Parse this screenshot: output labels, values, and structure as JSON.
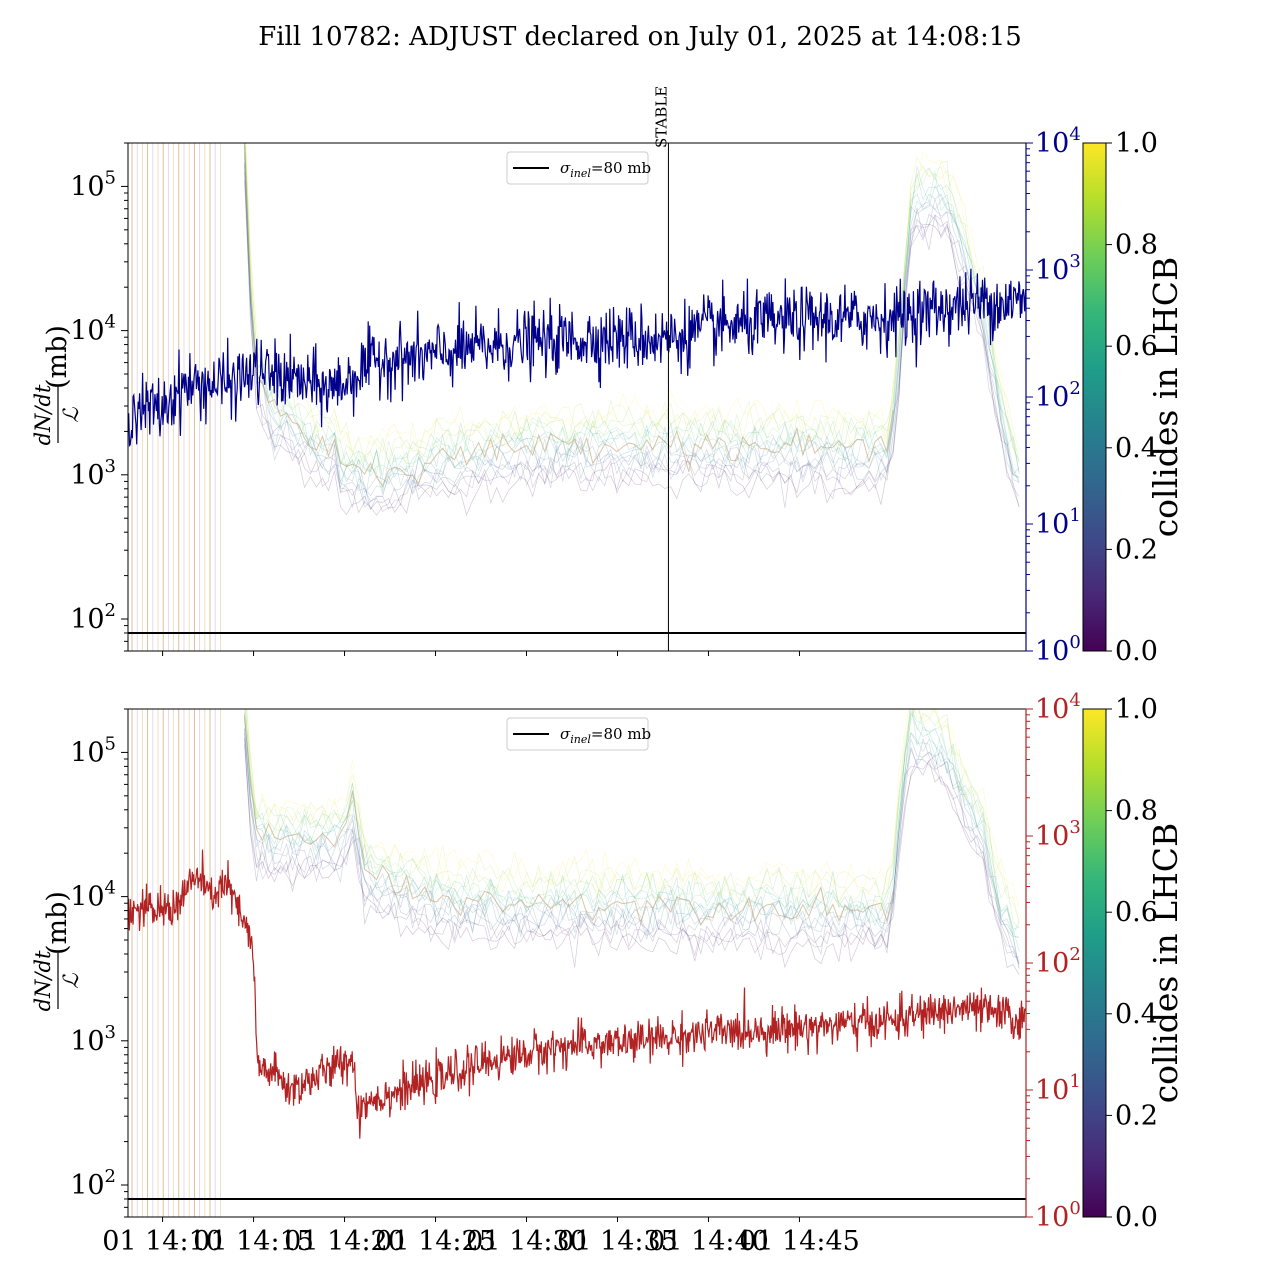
{
  "title": "Fill 10782: ADJUST declared on July 01, 2025 at 14:08:15",
  "x_ticks": [
    "01 14:10",
    "01 14:15",
    "01 14:20",
    "01 14:25",
    "01 14:30",
    "01 14:35",
    "01 14:40",
    "01 14:45"
  ],
  "colors": {
    "lumi_line": "#00008b",
    "intensity_line": "#b22222",
    "sigma_line": "#000000",
    "stable_line": "#000000",
    "colormap": [
      "#440154",
      "#482878",
      "#3e4a89",
      "#31688e",
      "#26828e",
      "#1f9e89",
      "#35b779",
      "#6ece58",
      "#b5de2b",
      "#fde725"
    ]
  },
  "chart_data": [
    {
      "type": "line",
      "panel": "top",
      "ylabel_left": "dN/dt / ℒ (mb)",
      "yscale_left": "log",
      "ylim_left": [
        60,
        200000
      ],
      "yticks_left": [
        {
          "base": "10",
          "exp": "2",
          "value": 100
        },
        {
          "base": "10",
          "exp": "3",
          "value": 1000
        },
        {
          "base": "10",
          "exp": "4",
          "value": 10000
        },
        {
          "base": "10",
          "exp": "5",
          "value": 100000
        }
      ],
      "yscale_right": "log",
      "ylim_right": [
        1,
        10000
      ],
      "yticks_right": [
        {
          "base": "10",
          "exp": "0",
          "value": 1
        },
        {
          "base": "10",
          "exp": "1",
          "value": 10
        },
        {
          "base": "10",
          "exp": "2",
          "value": 100
        },
        {
          "base": "10",
          "exp": "3",
          "value": 1000
        },
        {
          "base": "10",
          "exp": "4",
          "value": 10000
        }
      ],
      "legend": {
        "label_symbol": "σ",
        "label_sub": "inel",
        "label_rest": "=80 mb",
        "placement": "top-center"
      },
      "horizontal_line": 80,
      "vline": {
        "label": "STABLE",
        "x_minutes": 27.8
      },
      "right_series_color": "#00008b",
      "right_series_keypoints": [
        [
          0,
          80
        ],
        [
          1,
          120
        ],
        [
          4,
          130
        ],
        [
          5,
          160
        ],
        [
          7,
          140
        ],
        [
          9,
          115
        ],
        [
          10,
          130
        ],
        [
          11,
          165
        ],
        [
          12,
          200
        ],
        [
          14,
          200
        ],
        [
          17,
          240
        ],
        [
          20,
          270
        ],
        [
          24,
          290
        ],
        [
          28,
          290
        ],
        [
          30,
          350
        ],
        [
          35,
          400
        ],
        [
          40,
          420
        ],
        [
          42,
          480
        ],
        [
          44,
          530
        ],
        [
          45,
          560
        ],
        [
          47,
          560
        ]
      ],
      "right_series_noise": 0.13,
      "faint_series_keypoints": [
        [
          4.5,
          200000
        ],
        [
          5,
          6000
        ],
        [
          6,
          3000
        ],
        [
          9,
          1500
        ],
        [
          9.4,
          2000
        ],
        [
          9.6,
          1200
        ],
        [
          12,
          1000
        ],
        [
          15,
          1300
        ],
        [
          20,
          1600
        ],
        [
          25,
          1700
        ],
        [
          30,
          1600
        ],
        [
          36,
          1550
        ],
        [
          40,
          1500
        ],
        [
          40.2,
          3000
        ],
        [
          41.2,
          80000
        ],
        [
          43,
          90000
        ],
        [
          45,
          15000
        ],
        [
          46,
          3000
        ],
        [
          47,
          1000
        ]
      ],
      "colorbar": {
        "label": "collides in LHCB",
        "ticks": [
          "0.0",
          "0.2",
          "0.4",
          "0.6",
          "0.8",
          "1.0"
        ],
        "range": [
          0,
          1
        ]
      }
    },
    {
      "type": "line",
      "panel": "bottom",
      "ylabel_left": "dN/dt / ℒ (mb)",
      "yscale_left": "log",
      "ylim_left": [
        60,
        200000
      ],
      "yticks_left": [
        {
          "base": "10",
          "exp": "2",
          "value": 100
        },
        {
          "base": "10",
          "exp": "3",
          "value": 1000
        },
        {
          "base": "10",
          "exp": "4",
          "value": 10000
        },
        {
          "base": "10",
          "exp": "5",
          "value": 100000
        }
      ],
      "yscale_right": "log",
      "ylim_right": [
        1,
        10000
      ],
      "yticks_right": [
        {
          "base": "10",
          "exp": "0",
          "value": 1
        },
        {
          "base": "10",
          "exp": "1",
          "value": 10
        },
        {
          "base": "10",
          "exp": "2",
          "value": 100
        },
        {
          "base": "10",
          "exp": "3",
          "value": 1000
        },
        {
          "base": "10",
          "exp": "4",
          "value": 10000
        }
      ],
      "legend": {
        "label_symbol": "σ",
        "label_sub": "inel",
        "label_rest": "=80 mb",
        "placement": "top-center"
      },
      "horizontal_line": 80,
      "right_series_color": "#b22222",
      "right_series_keypoints": [
        [
          0,
          260
        ],
        [
          0.8,
          290
        ],
        [
          1.5,
          420
        ],
        [
          2,
          480
        ],
        [
          2.6,
          330
        ],
        [
          3.5,
          430
        ],
        [
          4,
          300
        ],
        [
          4.3,
          220
        ],
        [
          4.7,
          180
        ],
        [
          5,
          110
        ],
        [
          5.2,
          15
        ],
        [
          6,
          14
        ],
        [
          7,
          10
        ],
        [
          9,
          14
        ],
        [
          10.5,
          18
        ],
        [
          10.6,
          12
        ],
        [
          10.7,
          6
        ],
        [
          11,
          8
        ],
        [
          15,
          12
        ],
        [
          18,
          17
        ],
        [
          22,
          22
        ],
        [
          26,
          24
        ],
        [
          30,
          28
        ],
        [
          35,
          31
        ],
        [
          40,
          35
        ],
        [
          42,
          40
        ],
        [
          44,
          44
        ],
        [
          46,
          40
        ],
        [
          47,
          35
        ]
      ],
      "right_series_noise": 0.08,
      "faint_series_keypoints": [
        [
          4.5,
          200000
        ],
        [
          5,
          30000
        ],
        [
          6,
          25000
        ],
        [
          8,
          26000
        ],
        [
          10,
          27000
        ],
        [
          10.5,
          50000
        ],
        [
          11,
          15000
        ],
        [
          15,
          10000
        ],
        [
          20,
          9000
        ],
        [
          25,
          9000
        ],
        [
          30,
          8500
        ],
        [
          36,
          8500
        ],
        [
          40,
          8000
        ],
        [
          41,
          150000
        ],
        [
          43,
          100000
        ],
        [
          45,
          30000
        ],
        [
          46,
          9000
        ],
        [
          47,
          5000
        ]
      ],
      "colorbar": {
        "label": "collides in LHCB",
        "ticks": [
          "0.0",
          "0.2",
          "0.4",
          "0.6",
          "0.8",
          "1.0"
        ],
        "range": [
          0,
          1
        ]
      }
    }
  ]
}
